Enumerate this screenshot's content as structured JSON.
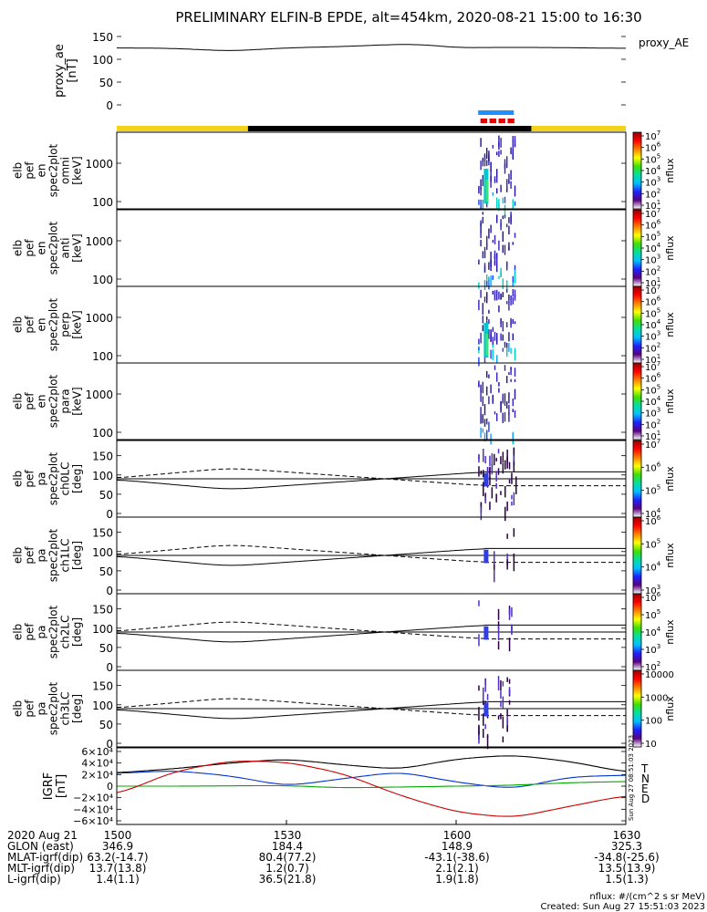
{
  "title": "PRELIMINARY ELFIN-B EPDE, alt=454km, 2020-08-21 15:00 to 16:30",
  "colors": {
    "day_bar": "#f3d31a",
    "night_bar": "#000000",
    "science_zone_blue": "#1e90ff",
    "science_zone_red": "#e60000",
    "geo_x": "#000000",
    "geo_y": "#0033cc",
    "geo_z": "#00aa00",
    "geo_d": "#cc0000"
  },
  "footer": {
    "time_row": {
      "label": "2020 Aug 21",
      "values": [
        "1500",
        "1530",
        "1600",
        "1630"
      ]
    },
    "rows": [
      {
        "label": "GLON (east)",
        "values": [
          "346.9",
          "184.4",
          "148.9",
          "325.3"
        ]
      },
      {
        "label": "MLAT-igrf(dip)",
        "values": [
          "63.2(-14.7)",
          "80.4(77.2)",
          "-43.1(-38.6)",
          "-34.8(-25.6)"
        ]
      },
      {
        "label": "MLT-igrf(dip)",
        "values": [
          "13.7(13.8)",
          "1.2(0.7)",
          "2.1(2.1)",
          "13.5(13.9)"
        ]
      },
      {
        "label": "L-igrf(dip)",
        "values": [
          "1.4(1.1)",
          "36.5(21.8)",
          "1.9(1.8)",
          "1.5(1.3)"
        ]
      }
    ],
    "units_note": "nflux: #/(cm^2 s sr MeV)",
    "created": "Created: Sun Aug 27 15:51:03 2023",
    "side_stamp": "Sun Aug 27 08:51:03 2023"
  },
  "chart_data": [
    {
      "type": "line",
      "ylabel": "proxy_ae [nT]",
      "legend": "proxy_AE",
      "yticks": [
        "150",
        "100",
        "50",
        "0"
      ],
      "ylim": [
        0,
        150
      ],
      "x_minutes": [
        0,
        10,
        20,
        30,
        40,
        50,
        55,
        60,
        65,
        75,
        90
      ],
      "values": [
        125,
        124,
        118,
        125,
        128,
        133,
        132,
        125,
        126,
        126,
        124
      ]
    },
    {
      "type": "heatmap",
      "ylabel": [
        "elb",
        "pef",
        "en",
        "spec2plot",
        "omni",
        "[keV]"
      ],
      "yticks": [
        "1000",
        "100"
      ],
      "colorbar_label": "nflux",
      "colorbar_ticks": [
        "10^7",
        "10^6",
        "10^5",
        "10^4",
        "10^3",
        "10^2",
        "10^1"
      ]
    },
    {
      "type": "heatmap",
      "ylabel": [
        "elb",
        "pef",
        "en",
        "spec2plot",
        "anti",
        "[keV]"
      ],
      "yticks": [
        "1000",
        "100"
      ],
      "colorbar_label": "nflux",
      "colorbar_ticks": [
        "10^7",
        "10^6",
        "10^5",
        "10^4",
        "10^3",
        "10^2",
        "10^1"
      ]
    },
    {
      "type": "heatmap",
      "ylabel": [
        "elb",
        "pef",
        "en",
        "spec2plot",
        "perp",
        "[keV]"
      ],
      "yticks": [
        "1000",
        "100"
      ],
      "colorbar_label": "nflux",
      "colorbar_ticks": [
        "10^7",
        "10^6",
        "10^5",
        "10^4",
        "10^3",
        "10^2",
        "10^1"
      ]
    },
    {
      "type": "heatmap",
      "ylabel": [
        "elb",
        "pef",
        "en",
        "spec2plot",
        "para",
        "[keV]"
      ],
      "yticks": [
        "1000",
        "100"
      ],
      "colorbar_label": "nflux",
      "colorbar_ticks": [
        "10^7",
        "10^6",
        "10^5",
        "10^4",
        "10^3",
        "10^2",
        "10^1"
      ]
    },
    {
      "type": "heatmap",
      "ylabel": [
        "elb",
        "pef",
        "pa",
        "spec2plot",
        "ch0LC",
        "[deg]"
      ],
      "yticks": [
        "150",
        "100",
        "50",
        "0"
      ],
      "ylim": [
        0,
        180
      ],
      "colorbar_label": "nflux",
      "colorbar_ticks": [
        "10^7",
        "10^6",
        "10^5",
        "10^4"
      ],
      "lc_x_minutes": [
        0,
        20,
        65
      ],
      "lc_values": [
        88,
        62,
        108
      ],
      "alc_values": [
        92,
        118,
        72
      ]
    },
    {
      "type": "heatmap",
      "ylabel": [
        "elb",
        "pef",
        "pa",
        "spec2plot",
        "ch1LC",
        "[deg]"
      ],
      "yticks": [
        "150",
        "100",
        "50",
        "0"
      ],
      "ylim": [
        0,
        180
      ],
      "colorbar_label": "nflux",
      "colorbar_ticks": [
        "10^6",
        "10^5",
        "10^4",
        "10^3"
      ],
      "lc_x_minutes": [
        0,
        20,
        65
      ],
      "lc_values": [
        88,
        62,
        108
      ],
      "alc_values": [
        92,
        118,
        72
      ]
    },
    {
      "type": "heatmap",
      "ylabel": [
        "elb",
        "pef",
        "pa",
        "spec2plot",
        "ch2LC",
        "[deg]"
      ],
      "yticks": [
        "150",
        "100",
        "50",
        "0"
      ],
      "ylim": [
        0,
        180
      ],
      "colorbar_label": "nflux",
      "colorbar_ticks": [
        "10^6",
        "10^5",
        "10^4",
        "10^3",
        "10^2"
      ],
      "lc_x_minutes": [
        0,
        20,
        65
      ],
      "lc_values": [
        88,
        62,
        108
      ],
      "alc_values": [
        92,
        118,
        72
      ]
    },
    {
      "type": "heatmap",
      "ylabel": [
        "elb",
        "pef",
        "pa",
        "spec2plot",
        "ch3LC",
        "[deg]"
      ],
      "yticks": [
        "150",
        "100",
        "50",
        "0"
      ],
      "ylim": [
        0,
        180
      ],
      "colorbar_label": "nflux",
      "colorbar_ticks": [
        "10000",
        "1000",
        "100",
        "10"
      ],
      "lc_x_minutes": [
        0,
        20,
        65
      ],
      "lc_values": [
        88,
        62,
        108
      ],
      "alc_values": [
        92,
        118,
        72
      ]
    },
    {
      "type": "line",
      "ylabel": [
        "IGRF",
        "[nT]"
      ],
      "yticks": [
        "6×10⁴",
        "4×10⁴",
        "2×10⁴",
        "0",
        "−2×10⁴",
        "−4×10⁴",
        "−6×10⁴"
      ],
      "ylim": [
        -60000,
        60000
      ],
      "legend": [
        "T",
        "N",
        "E",
        "D"
      ],
      "x_minutes": [
        0,
        10,
        20,
        30,
        40,
        50,
        60,
        70,
        80,
        90
      ],
      "series": [
        {
          "name": "T",
          "values": [
            23000,
            30000,
            40000,
            47000,
            37000,
            29000,
            47000,
            54000,
            43000,
            24000
          ]
        },
        {
          "name": "N",
          "values": [
            22000,
            27000,
            18000,
            0,
            13000,
            25000,
            7000,
            -5000,
            16000,
            19000
          ]
        },
        {
          "name": "E",
          "values": [
            0,
            0,
            500,
            1000,
            -3000,
            -1500,
            0,
            1500,
            6000,
            8000
          ]
        },
        {
          "name": "D",
          "values": [
            -15000,
            25000,
            44000,
            42000,
            22000,
            -16000,
            -45000,
            -55000,
            -35000,
            -16000
          ]
        }
      ]
    }
  ]
}
